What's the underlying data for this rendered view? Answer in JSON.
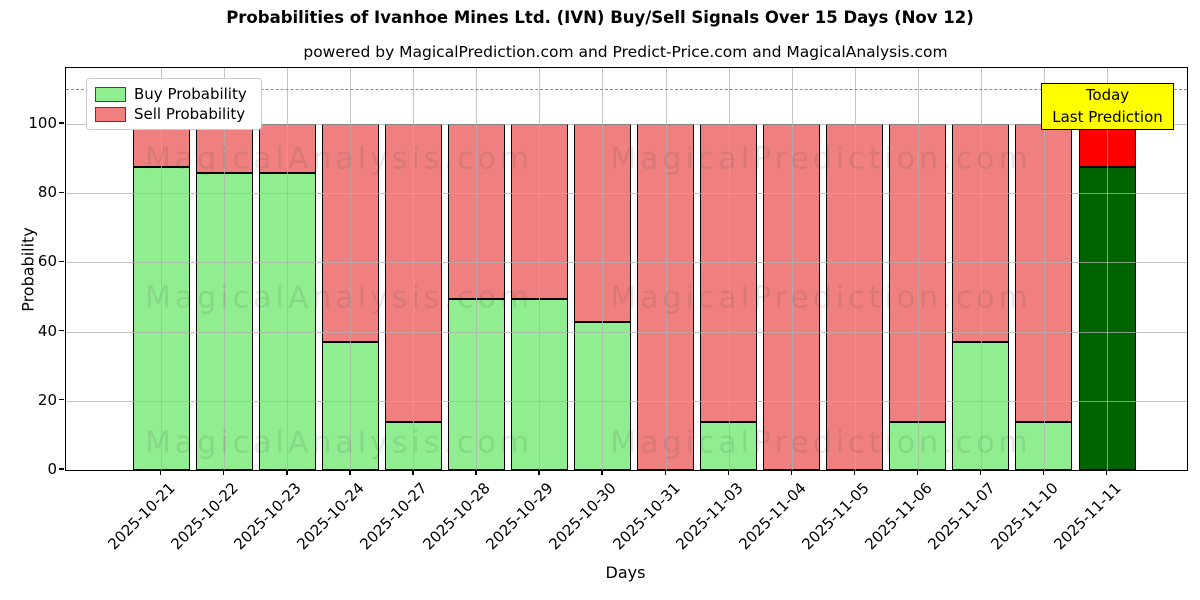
{
  "title": "Probabilities of Ivanhoe Mines Ltd. (IVN) Buy/Sell Signals Over 15 Days (Nov 12)",
  "subtitle": "powered by MagicalPrediction.com and Predict-Price.com and MagicalAnalysis.com",
  "legend": {
    "items": [
      {
        "label": "Buy Probability",
        "color": "#90ee90"
      },
      {
        "label": "Sell Probability",
        "color": "#f08080"
      }
    ]
  },
  "annotation_box": {
    "line1": "Today",
    "line2": "Last Prediction",
    "bg": "#ffff00"
  },
  "watermarks": {
    "left": "MagicalAnalysis.com",
    "right": "MagicalPrediction.com"
  },
  "colors": {
    "buy": "#90ee90",
    "sell": "#f08080",
    "buy_today": "#006400",
    "sell_today": "#ff0000",
    "grid": "#b0b0b0",
    "dashed_line": "#8a8a8a",
    "annotation_bg": "#ffff00"
  },
  "chart_data": {
    "type": "bar",
    "stacked": true,
    "title": "Probabilities of Ivanhoe Mines Ltd. (IVN) Buy/Sell Signals Over 15 Days (Nov 12)",
    "xlabel": "Days",
    "ylabel": "Probability",
    "categories": [
      "2025-10-21",
      "2025-10-22",
      "2025-10-23",
      "2025-10-24",
      "2025-10-27",
      "2025-10-28",
      "2025-10-29",
      "2025-10-30",
      "2025-10-31",
      "2025-11-03",
      "2025-11-04",
      "2025-11-05",
      "2025-11-06",
      "2025-11-07",
      "2025-11-10",
      "2025-11-11"
    ],
    "series": [
      {
        "name": "Buy Probability",
        "values": [
          87.5,
          85.7,
          85.7,
          37,
          14,
          49.4,
          49.4,
          42.9,
          0,
          14,
          0,
          0,
          14,
          37,
          14,
          87.5
        ]
      },
      {
        "name": "Sell Probability",
        "values": [
          12.5,
          14.3,
          14.3,
          63,
          86,
          50.6,
          50.6,
          57.1,
          100,
          86,
          100,
          100,
          86,
          63,
          86,
          12.5
        ]
      }
    ],
    "today_bar_index": 15,
    "ylim": [
      0,
      116
    ],
    "yticks": [
      0,
      20,
      40,
      60,
      80,
      100
    ],
    "dashed_line_y": 110,
    "grid": true,
    "legend_position": "upper left"
  }
}
